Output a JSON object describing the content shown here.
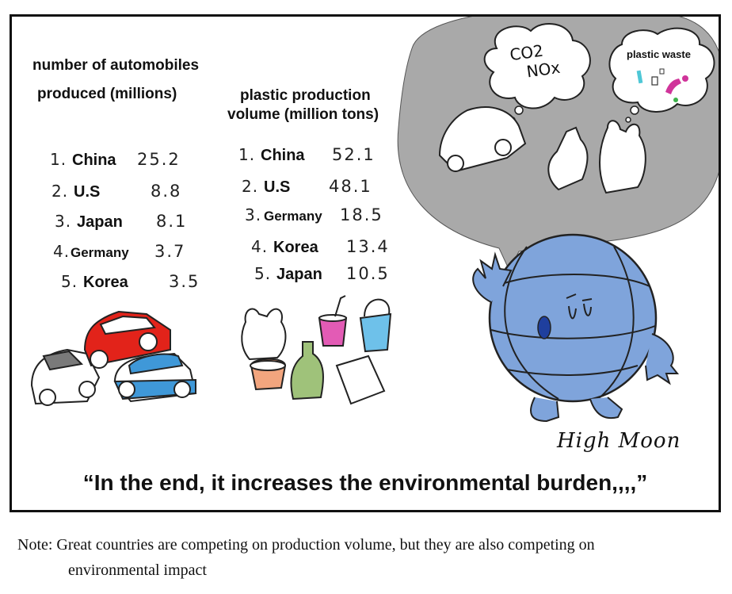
{
  "cars": {
    "heading_line1": "number of automobiles",
    "heading_line2": "produced (millions)",
    "items": [
      {
        "rank": "1.",
        "country": "China",
        "value": "25.2"
      },
      {
        "rank": "2.",
        "country": "U.S",
        "value": "8.8"
      },
      {
        "rank": "3.",
        "country": "Japan",
        "value": "8.1"
      },
      {
        "rank": "4.",
        "country": "Germany",
        "value": "3.7"
      },
      {
        "rank": "5.",
        "country": "Korea",
        "value": "3.5"
      }
    ]
  },
  "plastic": {
    "heading_line1": "plastic production",
    "heading_line2": "volume (million tons)",
    "items": [
      {
        "rank": "1.",
        "country": "China",
        "value": "52.1"
      },
      {
        "rank": "2.",
        "country": "U.S",
        "value": "48.1"
      },
      {
        "rank": "3.",
        "country": "Germany",
        "value": "18.5"
      },
      {
        "rank": "4.",
        "country": "Korea",
        "value": "13.4"
      },
      {
        "rank": "5.",
        "country": "Japan",
        "value": "10.5"
      }
    ]
  },
  "bubble": {
    "co2": "CO2",
    "nox": "NOx",
    "waste_label": "plastic waste"
  },
  "signature": "High Moon",
  "quote": "“In the end, it increases the environmental burden,,,,”",
  "note": {
    "line1": "Note: Great countries are competing on production volume, but they are also competing on",
    "line2": "environmental impact"
  },
  "colors": {
    "globe": "#7FA4DB",
    "speech_bubble": "#A9A9A9",
    "car_red": "#E2231A",
    "car_blue": "#3F98D8",
    "car_gray": "#7A7A7A",
    "cup_pink": "#E35BB5",
    "bucket_blue": "#6EC1EA",
    "bottle_green": "#9FC27A",
    "bowl_orange": "#F2A57E"
  }
}
